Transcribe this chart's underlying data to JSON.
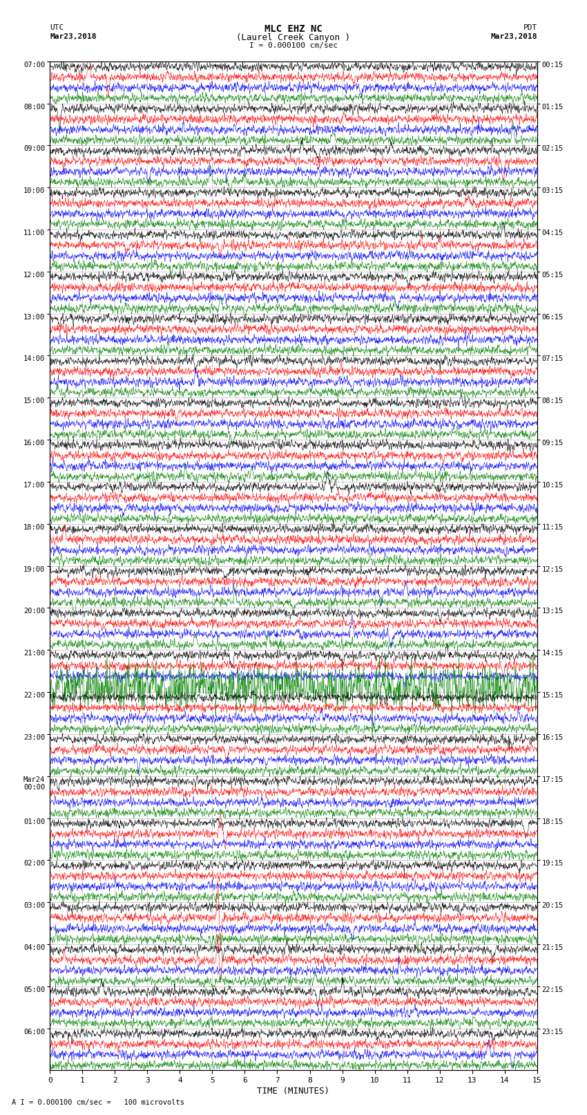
{
  "title_line1": "MLC EHZ NC",
  "title_line2": "(Laurel Creek Canyon )",
  "scale_label": "I = 0.000100 cm/sec",
  "left_label_top": "UTC",
  "left_label_date": "Mar23,2018",
  "right_label_top": "PDT",
  "right_label_date": "Mar23,2018",
  "bottom_label": "TIME (MINUTES)",
  "footnote": "A I = 0.000100 cm/sec =   100 microvolts",
  "x_min": 0,
  "x_max": 15,
  "trace_colors": [
    "black",
    "red",
    "blue",
    "green"
  ],
  "background_color": "#ffffff",
  "grid_color": "#999999",
  "num_time_blocks": 24,
  "traces_per_block": 4,
  "utc_times": [
    "07:00",
    "08:00",
    "09:00",
    "10:00",
    "11:00",
    "12:00",
    "13:00",
    "14:00",
    "15:00",
    "16:00",
    "17:00",
    "18:00",
    "19:00",
    "20:00",
    "21:00",
    "22:00",
    "23:00",
    "Mar24\n00:00",
    "01:00",
    "02:00",
    "03:00",
    "04:00",
    "05:00",
    "06:00"
  ],
  "pdt_times": [
    "00:15",
    "01:15",
    "02:15",
    "03:15",
    "04:15",
    "05:15",
    "06:15",
    "07:15",
    "08:15",
    "09:15",
    "10:15",
    "11:15",
    "12:15",
    "13:15",
    "14:15",
    "15:15",
    "16:15",
    "17:15",
    "18:15",
    "19:15",
    "20:15",
    "21:15",
    "22:15",
    "23:15"
  ],
  "noise_seed": 12345
}
